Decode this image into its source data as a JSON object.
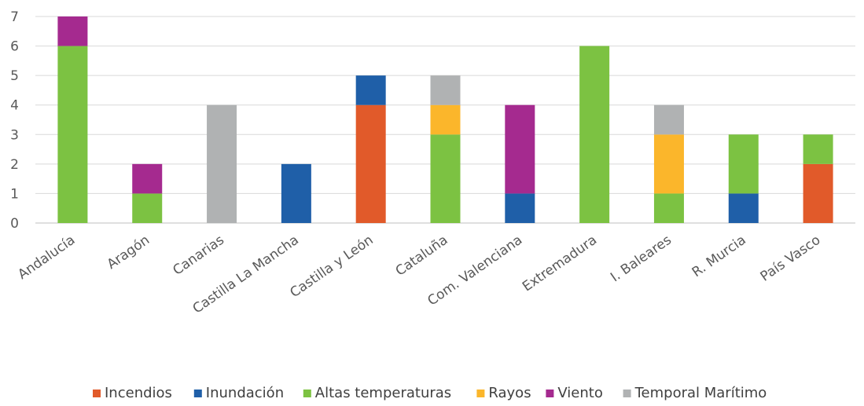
{
  "chart_data": {
    "type": "bar",
    "stacked": true,
    "title": "",
    "xlabel": "",
    "ylabel": "",
    "ylim": [
      0,
      7
    ],
    "yticks": [
      0,
      1,
      2,
      3,
      4,
      5,
      6,
      7
    ],
    "grid": true,
    "legend_position": "bottom",
    "categories": [
      "Andalucía",
      "Aragón",
      "Canarias",
      "Castilla La Mancha",
      "Castilla y León",
      "Cataluña",
      "Com. Valenciana",
      "Extremadura",
      "I. Baleares",
      "R. Murcia",
      "País Vasco"
    ],
    "series": [
      {
        "name": "Incendios",
        "color": "#e15a2a",
        "values": [
          0,
          0,
          0,
          0,
          4,
          0,
          0,
          0,
          0,
          0,
          2
        ]
      },
      {
        "name": "Inundación",
        "color": "#1f5fa8",
        "values": [
          0,
          0,
          0,
          2,
          1,
          0,
          1,
          0,
          0,
          1,
          0
        ]
      },
      {
        "name": "Altas temperaturas",
        "color": "#7cc242",
        "values": [
          6,
          1,
          0,
          0,
          0,
          3,
          0,
          6,
          1,
          2,
          1
        ]
      },
      {
        "name": "Rayos",
        "color": "#fbb62b",
        "values": [
          0,
          0,
          0,
          0,
          0,
          1,
          0,
          0,
          2,
          0,
          0
        ]
      },
      {
        "name": "Viento",
        "color": "#a52a8f",
        "values": [
          1,
          1,
          0,
          0,
          0,
          0,
          3,
          0,
          0,
          0,
          0
        ]
      },
      {
        "name": "Temporal Marítimo",
        "color": "#b0b2b3",
        "values": [
          0,
          0,
          4,
          0,
          0,
          1,
          0,
          0,
          1,
          0,
          0
        ]
      }
    ]
  }
}
